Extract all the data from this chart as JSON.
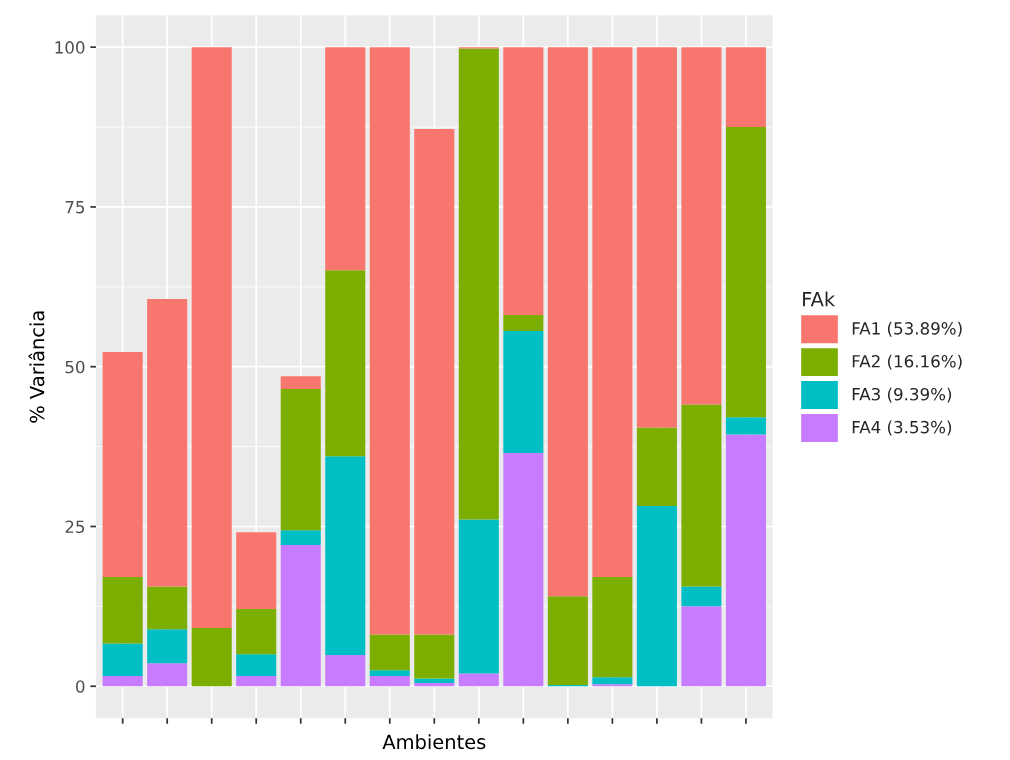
{
  "chart_data": {
    "type": "bar",
    "stacked": true,
    "xlabel": "Ambientes",
    "ylabel": "% Variância",
    "legend_title": "FAk",
    "legend": "right",
    "grid": true,
    "categories": [
      null,
      null,
      null,
      null,
      null,
      null,
      null,
      null,
      null,
      null,
      null,
      null,
      null,
      null,
      null
    ],
    "ylim": [
      -5,
      105
    ],
    "yticks": [
      0,
      25,
      50,
      75,
      100
    ],
    "series": [
      {
        "name": "FA4 (3.53%)",
        "color": "#c77cff",
        "values": [
          1.6,
          3.6,
          0,
          1.6,
          22.1,
          4.9,
          1.6,
          0.5,
          2.0,
          36.5,
          0,
          0.3,
          0,
          12.5,
          39.4
        ]
      },
      {
        "name": "FA3 (9.39%)",
        "color": "#00bfc4",
        "values": [
          5.1,
          5.3,
          0,
          3.4,
          2.3,
          31.1,
          0.9,
          0.7,
          24.1,
          19.1,
          0.2,
          1.1,
          28.2,
          3.1,
          2.7
        ]
      },
      {
        "name": "FA2 (16.16%)",
        "color": "#7cae00",
        "values": [
          10.4,
          6.7,
          9.1,
          7.1,
          22.1,
          29.1,
          5.6,
          6.9,
          73.7,
          2.5,
          13.9,
          15.7,
          12.3,
          28.5,
          45.4
        ]
      },
      {
        "name": "FA1 (53.89%)",
        "color": "#f8766d",
        "values": [
          35.2,
          45.0,
          90.9,
          12.0,
          2.0,
          34.9,
          91.9,
          79.1,
          0.2,
          41.9,
          85.9,
          82.9,
          59.5,
          55.9,
          12.5
        ]
      }
    ]
  }
}
